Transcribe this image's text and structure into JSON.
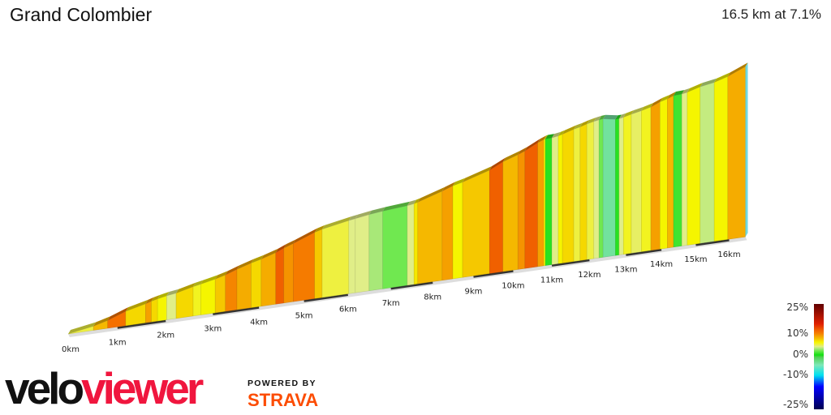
{
  "header": {
    "title": "Grand Colombier",
    "summary": "16.5 km at 7.1%"
  },
  "branding": {
    "logo_part1": "velo",
    "logo_part2": "viewer",
    "powered_by": "POWERED BY",
    "strava": "STRAVA",
    "logo_red": "#f0163e",
    "strava_orange": "#fc4c02"
  },
  "legend": {
    "labels": [
      "25%",
      "10%",
      "0%",
      "-10%",
      "-25%"
    ],
    "values": [
      25,
      10,
      0,
      -10,
      -25
    ]
  },
  "chart_data": {
    "type": "area",
    "title": "Grand Colombier",
    "xlabel": "",
    "ylabel": "",
    "x_unit": "km",
    "xlim": [
      0,
      16.5
    ],
    "ticks": [
      "0km",
      "1km",
      "2km",
      "3km",
      "4km",
      "5km",
      "6km",
      "7km",
      "8km",
      "9km",
      "10km",
      "11km",
      "12km",
      "13km",
      "14km",
      "15km",
      "16km"
    ],
    "total_distance_km": 16.5,
    "avg_gradient_pct": 7.1,
    "colorscale": [
      [
        -25,
        "#000050"
      ],
      [
        -15,
        "#0000ff"
      ],
      [
        -10,
        "#00e0f0"
      ],
      [
        -5,
        "#7de8b8"
      ],
      [
        -1,
        "#50d050"
      ],
      [
        0,
        "#10e010"
      ],
      [
        2,
        "#70e850"
      ],
      [
        3,
        "#a8e878"
      ],
      [
        4,
        "#e0ee88"
      ],
      [
        5,
        "#eef040"
      ],
      [
        6,
        "#f5f500"
      ],
      [
        7,
        "#f5d800"
      ],
      [
        8,
        "#f5b800"
      ],
      [
        9,
        "#f5a000"
      ],
      [
        10,
        "#f58500"
      ],
      [
        11,
        "#f57000"
      ],
      [
        12,
        "#f06000"
      ],
      [
        15,
        "#e02000"
      ],
      [
        25,
        "#600000"
      ]
    ],
    "segments_km_gradient": [
      [
        0,
        0.51,
        5
      ],
      [
        0.51,
        0.8,
        8
      ],
      [
        0.8,
        1.17,
        11
      ],
      [
        1.17,
        1.58,
        7
      ],
      [
        1.58,
        1.7,
        9
      ],
      [
        1.7,
        1.83,
        7
      ],
      [
        1.83,
        2.02,
        6
      ],
      [
        2.02,
        2.22,
        4
      ],
      [
        2.22,
        2.58,
        7
      ],
      [
        2.58,
        2.74,
        5.5
      ],
      [
        2.74,
        3.05,
        6
      ],
      [
        3.05,
        3.27,
        7.5
      ],
      [
        3.27,
        3.52,
        10
      ],
      [
        3.52,
        3.83,
        8.5
      ],
      [
        3.83,
        4.05,
        7
      ],
      [
        4.05,
        4.37,
        8.5
      ],
      [
        4.37,
        4.55,
        12
      ],
      [
        4.55,
        4.76,
        9.5
      ],
      [
        4.76,
        5.24,
        10.5
      ],
      [
        5.24,
        5.41,
        7.5
      ],
      [
        5.41,
        6.02,
        5
      ],
      [
        6.02,
        6.17,
        4
      ],
      [
        6.17,
        6.49,
        4
      ],
      [
        6.49,
        6.81,
        3
      ],
      [
        6.81,
        7.39,
        2
      ],
      [
        7.39,
        7.55,
        4
      ],
      [
        7.55,
        7.64,
        6.5
      ],
      [
        7.64,
        8.23,
        8
      ],
      [
        8.23,
        8.49,
        9
      ],
      [
        8.49,
        8.73,
        6
      ],
      [
        8.73,
        9.4,
        7.5
      ],
      [
        9.4,
        9.74,
        12
      ],
      [
        9.74,
        10.12,
        8
      ],
      [
        10.12,
        10.3,
        9.5
      ],
      [
        10.3,
        10.63,
        12
      ],
      [
        10.63,
        10.79,
        9
      ],
      [
        10.79,
        10.83,
        6
      ],
      [
        10.83,
        11.0,
        0.5
      ],
      [
        11.0,
        11.17,
        4
      ],
      [
        11.17,
        11.28,
        6
      ],
      [
        11.28,
        11.58,
        7
      ],
      [
        11.58,
        11.75,
        5
      ],
      [
        11.75,
        11.93,
        7
      ],
      [
        11.93,
        12.12,
        5
      ],
      [
        12.12,
        12.26,
        4
      ],
      [
        12.26,
        12.37,
        2
      ],
      [
        12.37,
        12.71,
        -4
      ],
      [
        12.71,
        12.81,
        0.5
      ],
      [
        12.81,
        12.93,
        4
      ],
      [
        12.93,
        13.15,
        5.5
      ],
      [
        13.15,
        13.43,
        4.5
      ],
      [
        13.43,
        13.7,
        5.5
      ],
      [
        13.7,
        13.96,
        9
      ],
      [
        13.96,
        14.17,
        6
      ],
      [
        14.17,
        14.35,
        8
      ],
      [
        14.35,
        14.59,
        1
      ],
      [
        14.59,
        14.75,
        4
      ],
      [
        14.75,
        15.13,
        6
      ],
      [
        15.13,
        15.55,
        3.5
      ],
      [
        15.55,
        15.96,
        6
      ],
      [
        15.96,
        16.5,
        8.5
      ]
    ]
  }
}
